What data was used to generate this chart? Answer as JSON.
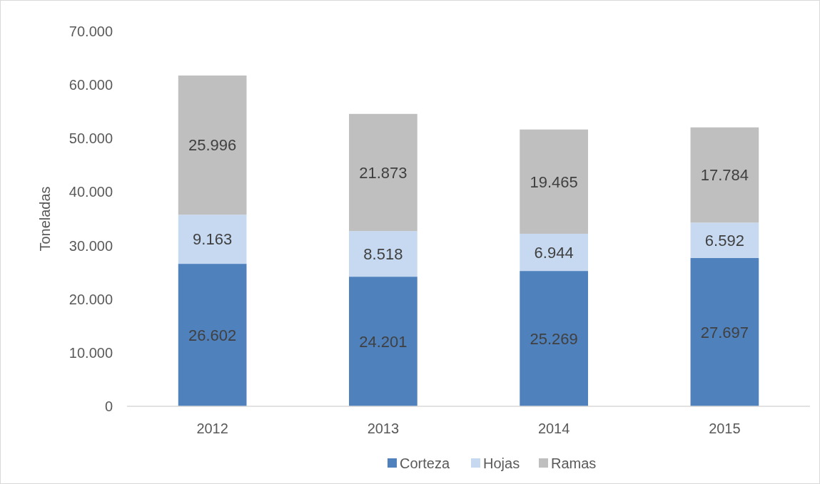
{
  "chart_data": {
    "type": "bar",
    "stacked": true,
    "ylabel": "Toneladas",
    "categories": [
      "2012",
      "2013",
      "2014",
      "2015"
    ],
    "ylim": [
      0,
      70000
    ],
    "yticks": [
      0,
      {
        "value": 10000,
        "label": "10.000"
      },
      {
        "value": 20000,
        "label": "20.000"
      },
      {
        "value": 30000,
        "label": "30.000"
      },
      {
        "value": 40000,
        "label": "40.000"
      },
      {
        "value": 50000,
        "label": "50.000"
      },
      {
        "value": 60000,
        "label": "60.000"
      },
      {
        "value": 70000,
        "label": "70.000"
      }
    ],
    "legend": "bottom",
    "series": [
      {
        "name": "Corteza",
        "color": "#4f81bd",
        "values": [
          26602,
          24201,
          25269,
          27697
        ],
        "value_labels": [
          "26.602",
          "24.201",
          "25.269",
          "27.697"
        ]
      },
      {
        "name": "Hojas",
        "color": "#c6d9f1",
        "values": [
          9163,
          8518,
          6944,
          6592
        ],
        "value_labels": [
          "9.163",
          "8.518",
          "6.944",
          "6.592"
        ]
      },
      {
        "name": "Ramas",
        "color": "#bfbfbf",
        "values": [
          25996,
          21873,
          19465,
          17784
        ],
        "value_labels": [
          "25.996",
          "21.873",
          "19.465",
          "17.784"
        ]
      }
    ]
  }
}
